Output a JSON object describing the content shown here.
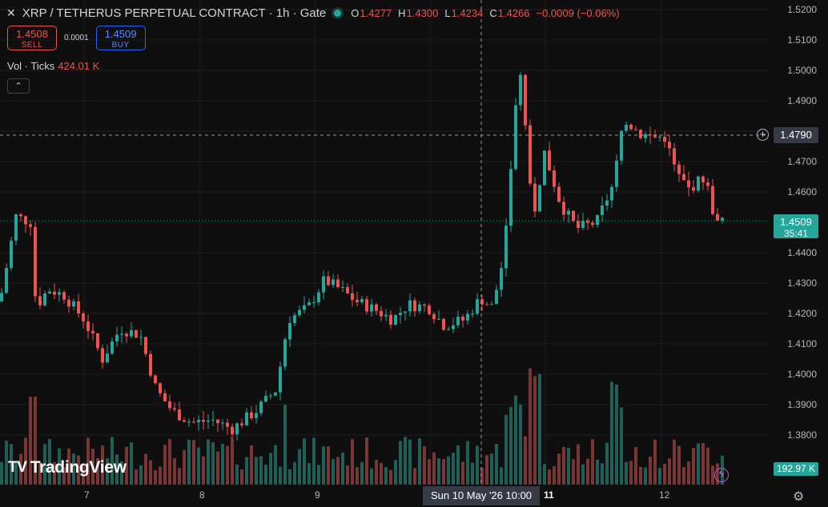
{
  "header": {
    "close_glyph": "✕",
    "title": "XRP / TETHERUS PERPETUAL CONTRACT · 1h · Gate",
    "ohlc": [
      {
        "k": "O",
        "v": "1.4277"
      },
      {
        "k": "H",
        "v": "1.4300"
      },
      {
        "k": "L",
        "v": "1.4234"
      },
      {
        "k": "C",
        "v": "1.4266"
      }
    ],
    "change": "−0.0009 (−0.06%)"
  },
  "trade": {
    "sell_price": "1.4508",
    "sell_label": "SELL",
    "spread": "0.0001",
    "buy_price": "1.4509",
    "buy_label": "BUY"
  },
  "volume": {
    "label": "Vol · Ticks",
    "value": "424.01 K"
  },
  "collapse_glyph": "⌃",
  "logo": {
    "mark": "TV",
    "text": "TradingView"
  },
  "price_axis": [
    "1.5200",
    "1.5100",
    "1.5000",
    "1.4900",
    "1.4700",
    "1.4600",
    "1.4400",
    "1.4300",
    "1.4200",
    "1.4100",
    "1.4000",
    "1.3900",
    "1.3800"
  ],
  "time_axis": [
    "7",
    "8",
    "9",
    "11",
    "12"
  ],
  "crosshair": {
    "price": "1.4790",
    "time": "Sun 10 May '26   10:00"
  },
  "last_price": {
    "price": "1.4509",
    "countdown": "35:41"
  },
  "volume_last": "192.97 K",
  "icons": {
    "plus": "+",
    "flash": "ϟ",
    "gear": "⚙"
  },
  "colors": {
    "up": "#26a69a",
    "down": "#ef5350",
    "up_vol": "#1f5f58",
    "down_vol": "#7a3535"
  }
}
